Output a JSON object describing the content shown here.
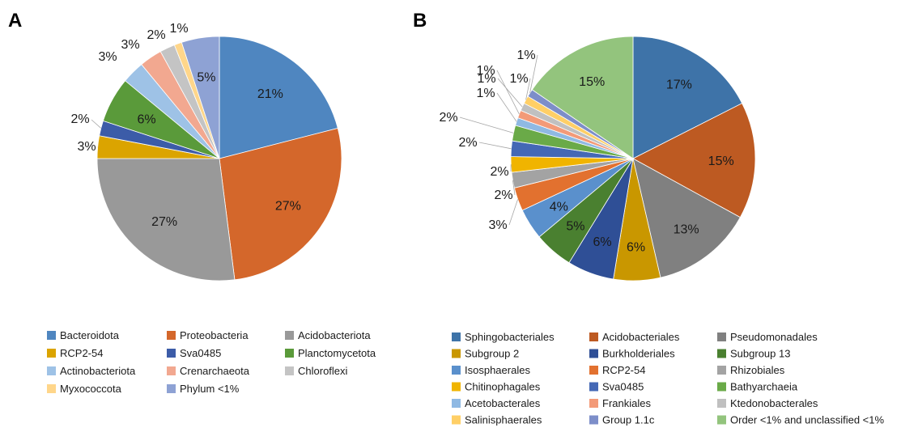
{
  "chart_data": [
    {
      "type": "pie",
      "panel_label": "A",
      "start_angle_deg": 0,
      "direction": "clockwise",
      "slices": [
        {
          "name": "Bacteroidota",
          "value": 21,
          "label": "21%",
          "color": "#4f86c0"
        },
        {
          "name": "Proteobacteria",
          "value": 27,
          "label": "27%",
          "color": "#d4672b"
        },
        {
          "name": "Acidobacteriota",
          "value": 27,
          "label": "27%",
          "color": "#999999"
        },
        {
          "name": "RCP2-54",
          "value": 3,
          "label": "3%",
          "color": "#dba400"
        },
        {
          "name": "Sva0485",
          "value": 2,
          "label": "2%",
          "color": "#3c5ca8"
        },
        {
          "name": "Planctomycetota",
          "value": 6,
          "label": "6%",
          "color": "#5a9a3a"
        },
        {
          "name": "Actinobacteriota",
          "value": 3,
          "label": "3%",
          "color": "#9ec2e6"
        },
        {
          "name": "Crenarchaeota",
          "value": 3,
          "label": "3%",
          "color": "#f2a890"
        },
        {
          "name": "Chloroflexi",
          "value": 2,
          "label": "2%",
          "color": "#c4c4c4"
        },
        {
          "name": "Myxococcota",
          "value": 1,
          "label": "1%",
          "color": "#ffd68a"
        },
        {
          "name": "Phylum <1%",
          "value": 5,
          "label": "5%",
          "color": "#8ea2d4"
        }
      ],
      "legend": {
        "columns": 3,
        "items": [
          "Bacteroidota",
          "Proteobacteria",
          "Acidobacteriota",
          "RCP2-54",
          "Sva0485",
          "Planctomycetota",
          "Actinobacteriota",
          "Crenarchaeota",
          "Chloroflexi",
          "Myxococcota",
          "Phylum <1%"
        ]
      }
    },
    {
      "type": "pie",
      "panel_label": "B",
      "start_angle_deg": 0,
      "direction": "clockwise",
      "slices": [
        {
          "name": "Sphingobacteriales",
          "value": 17,
          "label": "17%",
          "color": "#3e73a8"
        },
        {
          "name": "Acidobacteriales",
          "value": 15,
          "label": "15%",
          "color": "#bd5a22"
        },
        {
          "name": "Pseudomonadales",
          "value": 13,
          "label": "13%",
          "color": "#808080"
        },
        {
          "name": "Subgroup 2",
          "value": 6,
          "label": "6%",
          "color": "#c99700"
        },
        {
          "name": "Burkholderiales",
          "value": 6,
          "label": "6%",
          "color": "#2f4f96"
        },
        {
          "name": "Subgroup 13",
          "value": 5,
          "label": "5%",
          "color": "#4a8030"
        },
        {
          "name": "Isosphaerales",
          "value": 4,
          "label": "4%",
          "color": "#5a90cc"
        },
        {
          "name": "RCP2-54",
          "value": 3,
          "label": "3%",
          "color": "#e2712f"
        },
        {
          "name": "Rhizobiales",
          "value": 2,
          "label": "2%",
          "color": "#a3a3a3"
        },
        {
          "name": "Chitinophagales",
          "value": 2,
          "label": "2%",
          "color": "#f0b400"
        },
        {
          "name": "Sva0485",
          "value": 2,
          "label": "2%",
          "color": "#4468b5"
        },
        {
          "name": "Bathyarchaeia",
          "value": 2,
          "label": "2%",
          "color": "#6aaa48"
        },
        {
          "name": "Acetobacterales",
          "value": 1,
          "label": "1%",
          "color": "#8fb9e3"
        },
        {
          "name": "Frankiales",
          "value": 1,
          "label": "1%",
          "color": "#f39a78"
        },
        {
          "name": "Ktedonobacterales",
          "value": 1,
          "label": "1%",
          "color": "#c0c0c0"
        },
        {
          "name": "Salinisphaerales",
          "value": 1,
          "label": "1%",
          "color": "#ffcf66"
        },
        {
          "name": "Group 1.1c",
          "value": 1,
          "label": "1%",
          "color": "#7d8ec9"
        },
        {
          "name": "Order <1% and unclassified <1%",
          "value": 15,
          "label": "15%",
          "color": "#93c47d"
        }
      ],
      "legend": {
        "columns": 3,
        "items": [
          "Sphingobacteriales",
          "Acidobacteriales",
          "Pseudomonadales",
          "Subgroup 2",
          "Burkholderiales",
          "Subgroup 13",
          "Isosphaerales",
          "RCP2-54",
          "Rhizobiales",
          "Chitinophagales",
          "Sva0485",
          "Bathyarchaeia",
          "Acetobacterales",
          "Frankiales",
          "Ktedonobacterales",
          "Salinisphaerales",
          "Group 1.1c",
          "Order <1% and unclassified <1%"
        ]
      }
    }
  ]
}
